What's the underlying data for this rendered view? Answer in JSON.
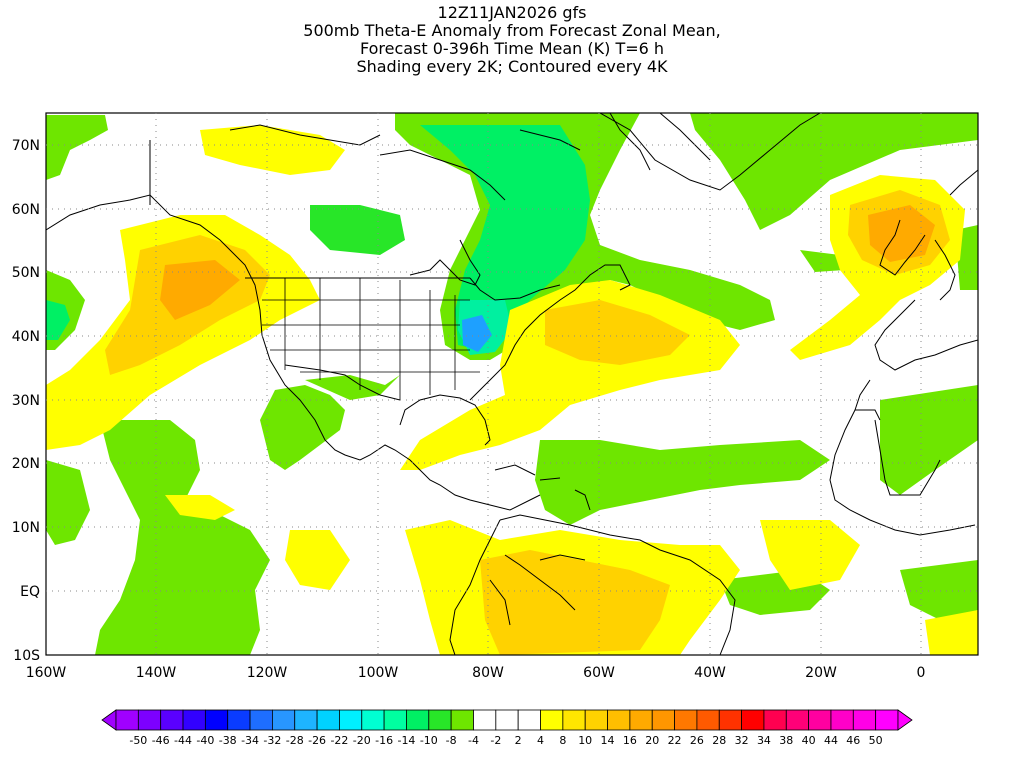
{
  "title": {
    "line1": "12Z11JAN2026 gfs",
    "line2": "500mb Theta-E Anomaly from Forecast Zonal Mean,",
    "line3": "Forecast 0-396h Time Mean (K) T=6 h",
    "line4": "Shading every 2K; Contoured every 4K"
  },
  "lon_labels": [
    "160W",
    "140W",
    "120W",
    "100W",
    "80W",
    "60W",
    "40W",
    "20W",
    "0"
  ],
  "lat_labels": [
    "70N",
    "60N",
    "50N",
    "40N",
    "30N",
    "20N",
    "10N",
    "EQ",
    "10S"
  ],
  "colorbar": {
    "labels": [
      "-50",
      "-46",
      "-44",
      "-40",
      "-38",
      "-34",
      "-32",
      "-28",
      "-26",
      "-22",
      "-20",
      "-16",
      "-14",
      "-10",
      "-8",
      "-4",
      "-2",
      "2",
      "4",
      "8",
      "10",
      "14",
      "16",
      "20",
      "22",
      "26",
      "28",
      "32",
      "34",
      "38",
      "40",
      "44",
      "46",
      "50"
    ],
    "colors": [
      "#a000ff",
      "#7d00ff",
      "#5a00ff",
      "#3200ff",
      "#0000ff",
      "#0a3cff",
      "#1e6eff",
      "#2896ff",
      "#1eb4ff",
      "#00d2ff",
      "#00f0ff",
      "#00ffd2",
      "#00ffa0",
      "#00f064",
      "#28e628",
      "#6ee600",
      "#ffffff",
      "#ffffff",
      "#ffffff",
      "#ffff00",
      "#ffe600",
      "#ffd200",
      "#ffbe00",
      "#ffaa00",
      "#ff9600",
      "#ff7800",
      "#ff5a00",
      "#ff3200",
      "#ff0000",
      "#ff0050",
      "#ff0078",
      "#ff00a0",
      "#ff00c8",
      "#ff00e6",
      "#ff00ff"
    ]
  },
  "colors": {
    "green": "#6ee600",
    "light_green": "#28e628",
    "teal": "#00f064",
    "cyan": "#00f0a0",
    "blue": "#1ea0ff",
    "yellow": "#ffff00",
    "gold": "#ffd200",
    "orange": "#ffaa00"
  }
}
